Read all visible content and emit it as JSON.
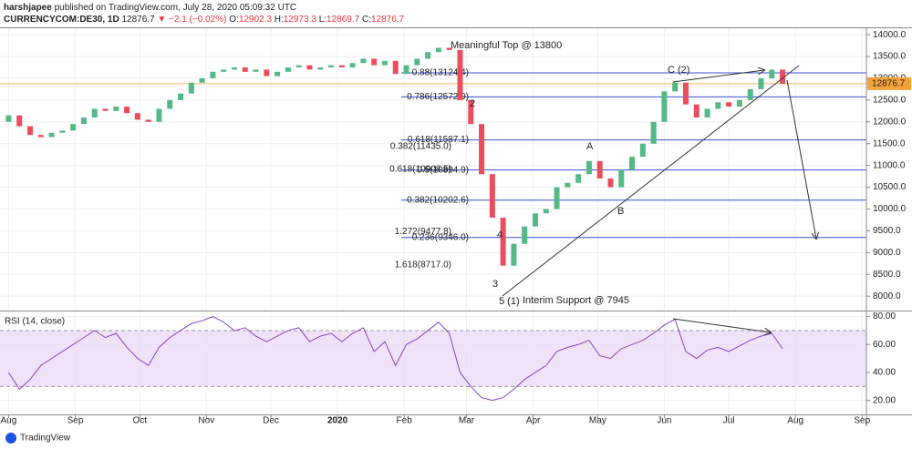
{
  "header": {
    "author": "harshjapee",
    "published": "published on TradingView.com, July 28, 2020 05:09:32 UTC",
    "symbol": "CURRENCYCOM:DE30, 1D",
    "last": "12876.7",
    "change": "▼ −2.1 (−0.02%)",
    "ohlc": [
      {
        "label": "O:",
        "value": "12902.3"
      },
      {
        "label": "H:",
        "value": "12973.3"
      },
      {
        "label": "L:",
        "value": "12869.7"
      },
      {
        "label": "C:",
        "value": "12876.7"
      }
    ]
  },
  "annotations": {
    "top": "Meaningful Top @ 13800",
    "support": "Interim Support @ 7945",
    "wave_2": "2",
    "wave_a": "A",
    "wave_b": "B",
    "wave_c": "C (2)",
    "wave_4": "4",
    "wave_3": "3",
    "wave_5": "5 (1)"
  },
  "footer": {
    "brand": "TradingView"
  },
  "chart_data": [
    {
      "type": "candlestick",
      "x": [
        0,
        5,
        10,
        15,
        20,
        25,
        30,
        35,
        40,
        45,
        50,
        55,
        60,
        65,
        70,
        75,
        80,
        85,
        90,
        95,
        100,
        105,
        110,
        115,
        120,
        125,
        130,
        135,
        140,
        145,
        150,
        155,
        160,
        165,
        170,
        175,
        180,
        185,
        190,
        195,
        200,
        205,
        210,
        215,
        220,
        225,
        230,
        235,
        240,
        245,
        250,
        255,
        260,
        265,
        270,
        275,
        280,
        285,
        290,
        295,
        300,
        305,
        310,
        315,
        320,
        325,
        330,
        335,
        340,
        345,
        350,
        355,
        360
      ],
      "open": [
        12000,
        12150,
        11900,
        11700,
        11650,
        11750,
        11800,
        11950,
        12100,
        12300,
        12250,
        12350,
        12200,
        12050,
        12000,
        12300,
        12500,
        12650,
        12900,
        13000,
        13150,
        13200,
        13250,
        13150,
        13200,
        13050,
        13150,
        13250,
        13300,
        13200,
        13250,
        13300,
        13250,
        13350,
        13450,
        13300,
        13400,
        13100,
        13300,
        13450,
        13600,
        13700,
        13650,
        12500,
        11950,
        10800,
        9800,
        8700,
        9200,
        9600,
        9900,
        10000,
        10500,
        10600,
        10800,
        11100,
        10700,
        10500,
        10900,
        11200,
        11500,
        12000,
        12700,
        12900,
        12400,
        12100,
        12300,
        12450,
        12350,
        12500,
        12750,
        13000,
        13200
      ],
      "close": [
        12150,
        11900,
        11700,
        11650,
        11750,
        11800,
        11950,
        12100,
        12300,
        12250,
        12350,
        12200,
        12050,
        12000,
        12300,
        12500,
        12650,
        12900,
        13000,
        13150,
        13200,
        13250,
        13150,
        13200,
        13050,
        13150,
        13250,
        13300,
        13200,
        13250,
        13300,
        13250,
        13350,
        13450,
        13300,
        13400,
        13100,
        13300,
        13450,
        13600,
        13700,
        13650,
        12500,
        11950,
        10800,
        9800,
        8700,
        9200,
        9600,
        9900,
        10000,
        10500,
        10600,
        10800,
        11100,
        10700,
        10500,
        10900,
        11200,
        11500,
        12000,
        12700,
        12900,
        12400,
        12100,
        12300,
        12450,
        12350,
        12500,
        12750,
        13000,
        13200,
        12876.7
      ],
      "up_color": "#53b987",
      "down_color": "#eb4d5c",
      "xlim": [
        -4,
        399
      ],
      "xticks": [
        {
          "value": 0,
          "label": "Aug"
        },
        {
          "value": 31,
          "label": "Sep"
        },
        {
          "value": 61,
          "label": "Oct"
        },
        {
          "value": 92,
          "label": "Nov"
        },
        {
          "value": 122,
          "label": "Dec"
        },
        {
          "value": 153,
          "label": "2020"
        },
        {
          "value": 184,
          "label": "Feb"
        },
        {
          "value": 213,
          "label": "Mar"
        },
        {
          "value": 244,
          "label": "Apr"
        },
        {
          "value": 274,
          "label": "May"
        },
        {
          "value": 305,
          "label": "Jun"
        },
        {
          "value": 335,
          "label": "Jul"
        },
        {
          "value": 366,
          "label": "Aug"
        },
        {
          "value": 397,
          "label": "Sep"
        }
      ],
      "ylim": [
        7690,
        14170
      ],
      "yticks": [
        {
          "value": 8000,
          "label": "8000.0"
        },
        {
          "value": 8500,
          "label": "8500.0"
        },
        {
          "value": 9000,
          "label": "9000.0"
        },
        {
          "value": 9500,
          "label": "9500.0"
        },
        {
          "value": 10000,
          "label": "10000.0"
        },
        {
          "value": 10500,
          "label": "10500.0"
        },
        {
          "value": 11000,
          "label": "11000.0"
        },
        {
          "value": 11500,
          "label": "11500.0"
        },
        {
          "value": 12000,
          "label": "12000.0"
        },
        {
          "value": 12500,
          "label": "12500.0"
        },
        {
          "value": 13000,
          "label": "13000.0"
        },
        {
          "value": 13500,
          "label": "13500.0"
        },
        {
          "value": 14000,
          "label": "14000.0"
        }
      ],
      "grid": true,
      "levels": [
        {
          "value": 13124.4,
          "label": "0.88(13124.4)"
        },
        {
          "value": 12572.9,
          "label": "0.786(12572.9)"
        },
        {
          "value": 11587.1,
          "label": "0.618(11587.1)"
        },
        {
          "value": 10894.9,
          "label": "0.5(10894.9)"
        },
        {
          "value": 10202.6,
          "label": "0.382(10202.6)"
        },
        {
          "value": 9346.0,
          "label": "0.236(9346.0)"
        }
      ],
      "level_color": "#3d4fd6",
      "targets": [
        {
          "value": 11435.0,
          "label": "0.382(11435.0)"
        },
        {
          "value": 10908.5,
          "label": "0.618(10908.5)"
        },
        {
          "value": 9477.8,
          "label": "1.272(9477.8)"
        },
        {
          "value": 8717.0,
          "label": "1.618(8717.0)"
        }
      ],
      "target_color": "#e8343f",
      "last_price": 12876.7,
      "last_color": "#f3a33a"
    },
    {
      "type": "line",
      "title": "RSI (14, close)",
      "x": [
        0,
        5,
        10,
        15,
        20,
        25,
        30,
        35,
        40,
        45,
        50,
        55,
        60,
        65,
        70,
        75,
        80,
        85,
        90,
        95,
        100,
        105,
        110,
        115,
        120,
        125,
        130,
        135,
        140,
        145,
        150,
        155,
        160,
        165,
        170,
        175,
        180,
        185,
        190,
        195,
        200,
        205,
        210,
        215,
        220,
        225,
        230,
        235,
        240,
        245,
        250,
        255,
        260,
        265,
        270,
        275,
        280,
        285,
        290,
        295,
        300,
        305,
        310,
        315,
        320,
        325,
        330,
        335,
        340,
        345,
        350,
        355,
        360
      ],
      "values": [
        40,
        28,
        35,
        45,
        50,
        55,
        60,
        65,
        70,
        65,
        68,
        58,
        50,
        45,
        58,
        65,
        70,
        75,
        77,
        80,
        76,
        70,
        72,
        66,
        62,
        66,
        70,
        72,
        62,
        66,
        68,
        62,
        68,
        72,
        55,
        62,
        45,
        60,
        64,
        70,
        76,
        68,
        40,
        30,
        22,
        20,
        22,
        28,
        35,
        40,
        45,
        55,
        58,
        60,
        63,
        52,
        50,
        57,
        60,
        63,
        68,
        74,
        78,
        55,
        50,
        56,
        58,
        55,
        59,
        63,
        66,
        68,
        57
      ],
      "color": "#8a3fc4",
      "band": [
        30,
        70
      ],
      "band_color": "#ead7f7",
      "xlim": [
        -4,
        399
      ],
      "ylim": [
        10,
        83
      ],
      "yticks": [
        {
          "value": 20,
          "label": "20.00"
        },
        {
          "value": 40,
          "label": "40.00"
        },
        {
          "value": 60,
          "label": "60.00"
        },
        {
          "value": 80,
          "label": "80.00"
        }
      ],
      "grid": true
    }
  ]
}
